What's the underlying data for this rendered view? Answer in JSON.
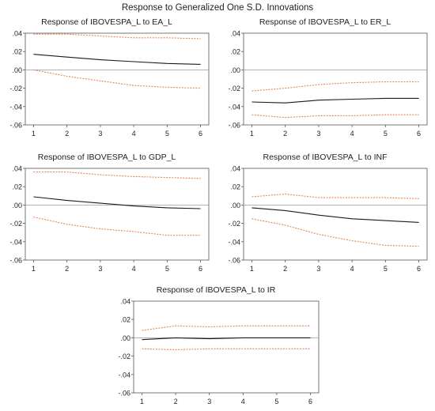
{
  "title": "Response to Generalized One S.D. Innovations",
  "colors": {
    "response": "#1a1a1a",
    "upper_band": "#e8864a",
    "lower_band": "#e8864a",
    "zero_line": "#9a9a9a",
    "frame": "#555555"
  },
  "chart_data": [
    {
      "type": "line",
      "title": "Response of IBOVESPA_L to EA_L",
      "x": [
        1,
        2,
        3,
        4,
        5,
        6
      ],
      "ylim": [
        -0.06,
        0.04
      ],
      "yticks": [
        ".04",
        ".02",
        ".00",
        "-.02",
        "-.04",
        "-.06"
      ],
      "xticks": [
        "1",
        "2",
        "3",
        "4",
        "5",
        "6"
      ],
      "grid": false,
      "series": [
        {
          "role": "response",
          "values": [
            0.017,
            0.014,
            0.011,
            0.009,
            0.007,
            0.006
          ]
        },
        {
          "role": "upper",
          "values": [
            0.039,
            0.039,
            0.037,
            0.035,
            0.035,
            0.034
          ]
        },
        {
          "role": "lower",
          "values": [
            0.0,
            -0.007,
            -0.012,
            -0.017,
            -0.019,
            -0.02
          ]
        }
      ]
    },
    {
      "type": "line",
      "title": "Response of IBOVESPA_L to ER_L",
      "x": [
        1,
        2,
        3,
        4,
        5,
        6
      ],
      "ylim": [
        -0.06,
        0.04
      ],
      "yticks": [
        ".04",
        ".02",
        ".00",
        "-.02",
        "-.04",
        "-.06"
      ],
      "xticks": [
        "1",
        "2",
        "3",
        "4",
        "5",
        "6"
      ],
      "grid": false,
      "series": [
        {
          "role": "response",
          "values": [
            -0.035,
            -0.036,
            -0.033,
            -0.032,
            -0.031,
            -0.031
          ]
        },
        {
          "role": "upper",
          "values": [
            -0.023,
            -0.02,
            -0.016,
            -0.014,
            -0.013,
            -0.013
          ]
        },
        {
          "role": "lower",
          "values": [
            -0.049,
            -0.052,
            -0.05,
            -0.05,
            -0.049,
            -0.049
          ]
        }
      ]
    },
    {
      "type": "line",
      "title": "Response of IBOVESPA_L to GDP_L",
      "x": [
        1,
        2,
        3,
        4,
        5,
        6
      ],
      "ylim": [
        -0.06,
        0.04
      ],
      "yticks": [
        ".04",
        ".02",
        ".00",
        "-.02",
        "-.04",
        "-.06"
      ],
      "xticks": [
        "1",
        "2",
        "3",
        "4",
        "5",
        "6"
      ],
      "grid": false,
      "series": [
        {
          "role": "response",
          "values": [
            0.009,
            0.005,
            0.002,
            -0.001,
            -0.003,
            -0.004
          ]
        },
        {
          "role": "upper",
          "values": [
            0.036,
            0.036,
            0.033,
            0.031,
            0.03,
            0.029
          ]
        },
        {
          "role": "lower",
          "values": [
            -0.013,
            -0.021,
            -0.026,
            -0.029,
            -0.033,
            -0.033
          ]
        }
      ]
    },
    {
      "type": "line",
      "title": "Response of IBOVESPA_L to INF",
      "x": [
        1,
        2,
        3,
        4,
        5,
        6
      ],
      "ylim": [
        -0.06,
        0.04
      ],
      "yticks": [
        ".04",
        ".02",
        ".00",
        "-.02",
        "-.04",
        "-.06"
      ],
      "xticks": [
        "1",
        "2",
        "3",
        "4",
        "5",
        "6"
      ],
      "grid": false,
      "series": [
        {
          "role": "response",
          "values": [
            -0.003,
            -0.006,
            -0.011,
            -0.015,
            -0.017,
            -0.019
          ]
        },
        {
          "role": "upper",
          "values": [
            0.009,
            0.012,
            0.008,
            0.008,
            0.008,
            0.007
          ]
        },
        {
          "role": "lower",
          "values": [
            -0.015,
            -0.022,
            -0.032,
            -0.039,
            -0.044,
            -0.045
          ]
        }
      ]
    },
    {
      "type": "line",
      "title": "Response of IBOVESPA_L to IR",
      "x": [
        1,
        2,
        3,
        4,
        5,
        6
      ],
      "ylim": [
        -0.06,
        0.04
      ],
      "yticks": [
        ".04",
        ".02",
        ".00",
        "-.02",
        "-.04",
        "-.06"
      ],
      "xticks": [
        "1",
        "2",
        "3",
        "4",
        "5",
        "6"
      ],
      "grid": false,
      "series": [
        {
          "role": "response",
          "values": [
            -0.002,
            0.0,
            -0.001,
            0.0,
            0.0,
            0.0
          ]
        },
        {
          "role": "upper",
          "values": [
            0.008,
            0.013,
            0.012,
            0.013,
            0.013,
            0.013
          ]
        },
        {
          "role": "lower",
          "values": [
            -0.012,
            -0.013,
            -0.012,
            -0.012,
            -0.012,
            -0.012
          ]
        }
      ]
    }
  ]
}
